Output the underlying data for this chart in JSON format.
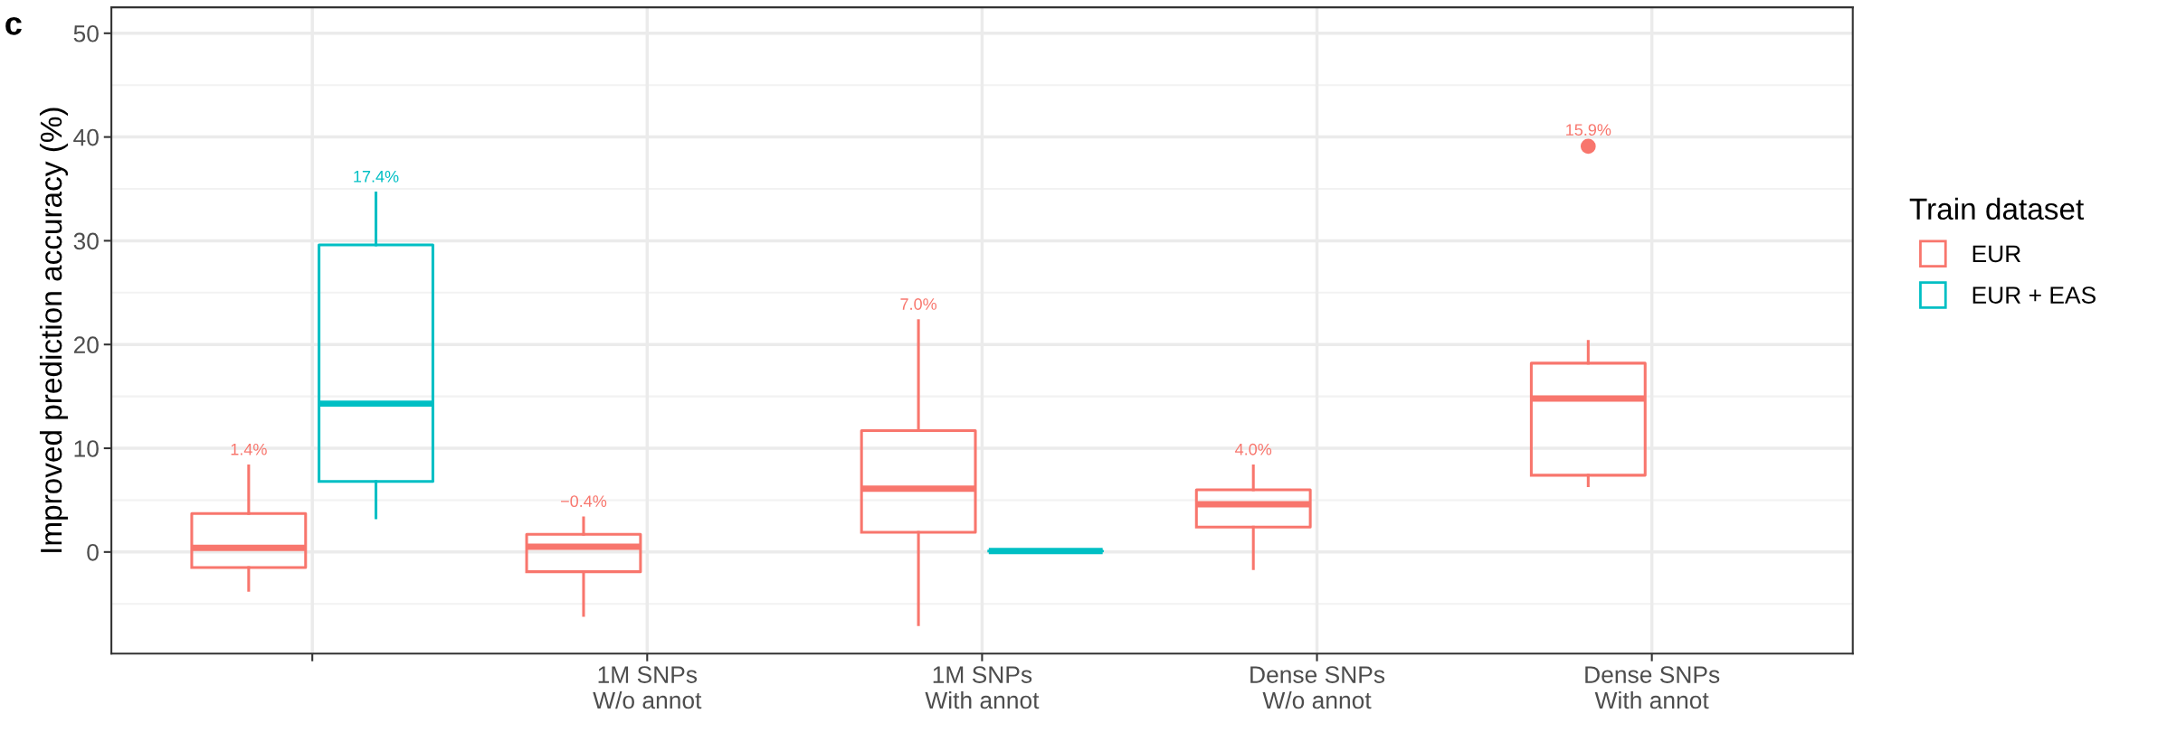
{
  "chart_data": {
    "type": "box",
    "ylabel": "Improved prediction accuracy (%)",
    "legend_title": "Train dataset",
    "legend": "right",
    "grid": true,
    "categories": [
      null,
      "1M SNPs\nW/o annot",
      "1M SNPs\nWith annot",
      "Dense SNPs\nW/o annot",
      "Dense SNPs\nWith annot"
    ],
    "ylim": [
      -9.8,
      52.5
    ],
    "yticks": [
      0,
      10,
      20,
      30,
      40,
      50
    ],
    "series": [
      {
        "name": "EUR",
        "color": "#f8766d",
        "value_labels": [
          "1.4%",
          "−0.4%",
          "7.0%",
          "4.0%",
          "15.9%"
        ],
        "boxes": [
          {
            "low": -3.7,
            "q1": -1.5,
            "median": 0.4,
            "q3": 3.7,
            "high": 8.3
          },
          {
            "low": -6.1,
            "q1": -1.9,
            "median": 0.5,
            "q3": 1.7,
            "high": 3.3
          },
          {
            "low": -7.0,
            "q1": 1.9,
            "median": 6.1,
            "q3": 11.7,
            "high": 22.3
          },
          {
            "low": -1.6,
            "q1": 2.4,
            "median": 4.6,
            "q3": 6.0,
            "high": 8.3
          },
          {
            "low": 6.4,
            "q1": 7.4,
            "median": 14.8,
            "q3": 18.2,
            "high": 20.3,
            "outliers": [
              39.1
            ]
          }
        ]
      },
      {
        "name": "EUR + EAS",
        "color": "#00bfc4",
        "value_labels": [
          "17.4%",
          null,
          null,
          null,
          null
        ],
        "boxes": [
          {
            "low": 3.3,
            "q1": 6.8,
            "median": 14.3,
            "q3": 29.6,
            "high": 34.6
          },
          null,
          {
            "low": 0.1,
            "q1": 0.1,
            "median": 0.1,
            "q3": 0.1,
            "high": 0.1
          },
          null,
          null
        ]
      }
    ],
    "annotations": [
      "c"
    ]
  }
}
